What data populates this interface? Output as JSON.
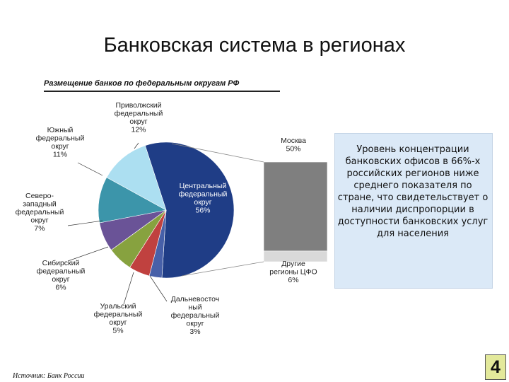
{
  "slide": {
    "title": "Банковская система в регионах",
    "info_text": "Уровень концентрации банковских офисов в 66%-х российских регионов ниже среднего показателя по стране, что свидетельствует о наличии диспропорции в доступности банковских услуг для населения",
    "source": "Источник: Банк России",
    "page_number": "4"
  },
  "chart_data": {
    "type": "pie",
    "title": "Размещение банков по федеральным округам РФ",
    "slices": [
      {
        "label": [
          "Центральный",
          "федеральный",
          "округ",
          "56%"
        ],
        "value": 56,
        "color": "#1f3d86"
      },
      {
        "label": [
          "Дальневосточ",
          "ный",
          "федеральный",
          "округ",
          "3%"
        ],
        "value": 3,
        "color": "#4760a8"
      },
      {
        "label": [
          "Уральский",
          "федеральный",
          "округ",
          "5%"
        ],
        "value": 5,
        "color": "#c0413f"
      },
      {
        "label": [
          "Сибирский",
          "федеральный",
          "округ",
          "6%"
        ],
        "value": 6,
        "color": "#87a23f"
      },
      {
        "label": [
          "Северо-",
          "западный",
          "федеральный",
          "округ",
          "7%"
        ],
        "value": 7,
        "color": "#6a5397"
      },
      {
        "label": [
          "Южный",
          "федеральный",
          "округ",
          "11%"
        ],
        "value": 11,
        "color": "#3c95aa"
      },
      {
        "label": [
          "Приволжский",
          "федеральный",
          "округ",
          "12%"
        ],
        "value": 12,
        "color": "#acdff1"
      }
    ],
    "breakdown": {
      "of": "Центральный федеральный округ",
      "segments": [
        {
          "label": [
            "Москва",
            "50%"
          ],
          "value": 50,
          "color": "#7f7f7f"
        },
        {
          "label": [
            "Другие",
            "регионы ЦФО",
            "6%"
          ],
          "value": 6,
          "color": "#d9d9d9"
        }
      ]
    }
  }
}
